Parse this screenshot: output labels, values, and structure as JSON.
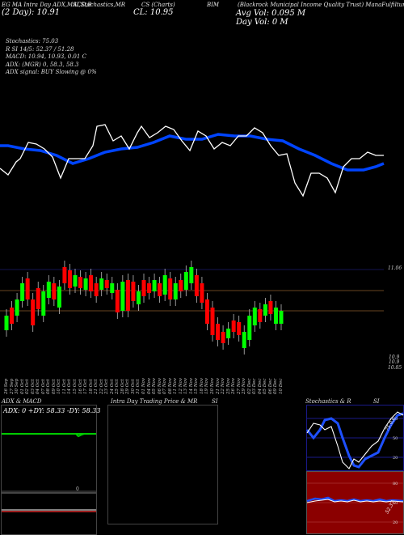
{
  "header": {
    "line1_left": "EG MA Intra Day ADX,MACD,B",
    "line1_mid": "SI,Stochastics,MR",
    "line1_c": "CS (Charts)",
    "line1_sym": "BIM",
    "line1_name": "(Blackrock Municipal Income Quality Trust) ManaFulfilture.com",
    "line2_left": "(2 Day): 10.91",
    "cl": "CL: 10.95",
    "avg_vol": "Avg Vol: 0.095 M",
    "day_vol": "Day Vol: 0   M"
  },
  "info_lines": [
    "Stochastics: 75.03",
    "R                 SI 14/5: 52.37 / 51.28",
    "MACD: 10.94, 10.93, 0.01 C",
    "",
    "ADX:                          (MGR) 0, 58.3, 58.3",
    "ADX   signal:                                    BUY Slowing @ 0%"
  ],
  "price_labels": {
    "top": "11.06",
    "mid": "10.9",
    "low": "10.9",
    "bottom": "10.85"
  },
  "dates": [
    "26 Sep",
    "27 Sep",
    "30 Sep",
    "01 Oct",
    "02 Oct",
    "03 Oct",
    "04 Oct",
    "07 Oct",
    "08 Oct",
    "09 Oct",
    "10 Oct",
    "11 Oct",
    "14 Oct",
    "15 Oct",
    "16 Oct",
    "17 Oct",
    "18 Oct",
    "21 Oct",
    "22 Oct",
    "23 Oct",
    "24 Oct",
    "25 Oct",
    "28 Oct",
    "29 Oct",
    "30 Oct",
    "31 Oct",
    "01 Nov",
    "04 Nov",
    "05 Nov",
    "06 Nov",
    "07 Nov",
    "08 Nov",
    "11 Nov",
    "12 Nov",
    "13 Nov",
    "14 Nov",
    "15 Nov",
    "18 Nov",
    "19 Nov",
    "20 Nov",
    "21 Nov",
    "22 Nov",
    "25 Nov",
    "26 Nov",
    "27 Nov",
    "29 Nov",
    "02 Dec",
    "03 Dec",
    "04 Dec",
    "05 Dec",
    "06 Dec",
    "09 Dec",
    "10 Dec"
  ],
  "panels": {
    "adx_title": "ADX  & MACD",
    "adx_readout": "ADX: 0   +DY: 58.33  -DY: 58.33",
    "adx_small": "0",
    "intraday_title": "Intra  Day Trading Price  & MR",
    "intraday_si": "SI",
    "stoch_title": "Stochastics & R",
    "stoch_si": "SI",
    "stoch_levels": [
      "80",
      "50",
      "20"
    ],
    "stoch_val": "75.03",
    "rsi_levels": [
      "80",
      "50",
      "20"
    ],
    "rsi_val": "52.37"
  },
  "colors": {
    "up": "#00ff00",
    "down": "#ff0000",
    "blue_line": "#0044ff",
    "white_line": "#ffffff",
    "brown_line": "#8a5a2b"
  }
}
